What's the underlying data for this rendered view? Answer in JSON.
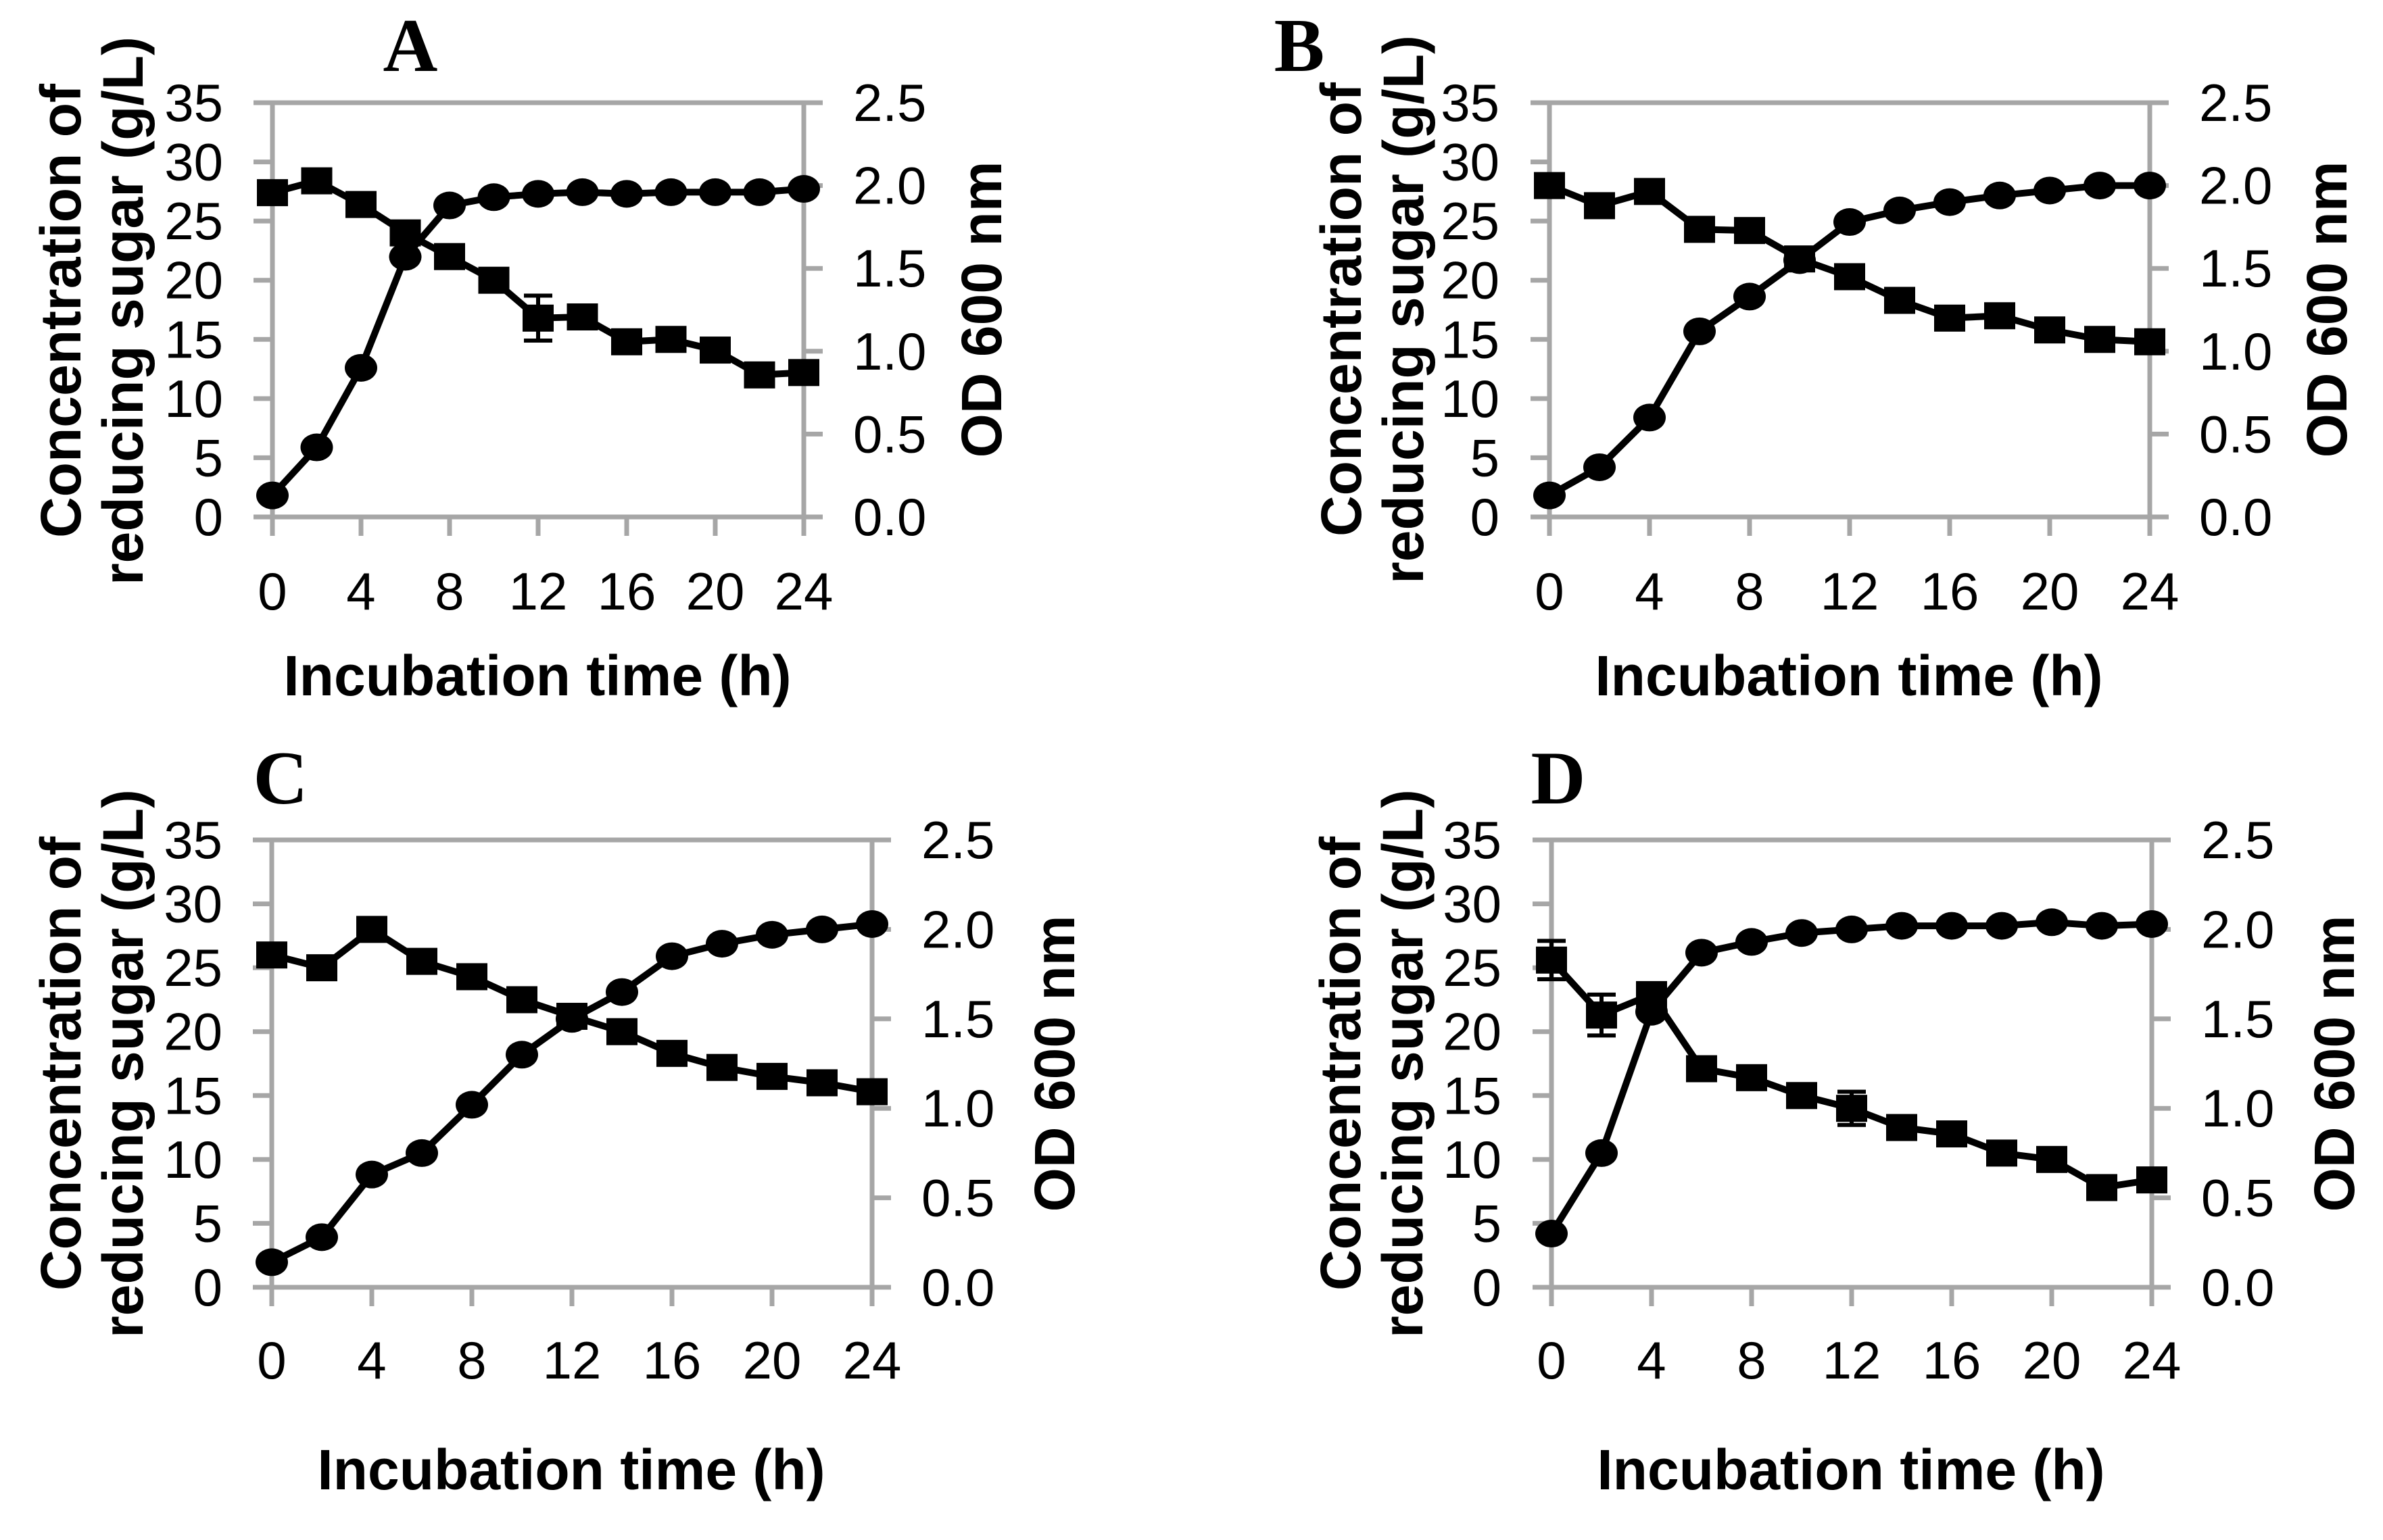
{
  "figure": {
    "background": "#ffffff",
    "axis_color": "#a6a6a6",
    "data_color": "#000000",
    "text_color": "#000000"
  },
  "chart_data": [
    {
      "type": "line",
      "panel_label": "A",
      "xlabel": "Incubation time (h)",
      "ylabel_left_line1": "Concentration of",
      "ylabel_left_line2": "reducing sugar (g/L)",
      "ylabel_right": "OD 600 nm",
      "xlim": [
        0,
        24
      ],
      "ylim_left": [
        0,
        35
      ],
      "ylim_right": [
        0,
        2.5
      ],
      "xticks": [
        0,
        4,
        8,
        12,
        16,
        20,
        24
      ],
      "yticks_left": [
        "0",
        "5",
        "10",
        "15",
        "20",
        "25",
        "30",
        "35"
      ],
      "yticks_right": [
        "0.0",
        "0.5",
        "1.0",
        "1.5",
        "2.0",
        "2.5"
      ],
      "grid": false,
      "legend": "none",
      "x": [
        0,
        2,
        4,
        6,
        8,
        10,
        12,
        14,
        16,
        18,
        20,
        22,
        24
      ],
      "series": [
        {
          "name": "reducing sugar",
          "axis": "left",
          "marker": "square",
          "values": [
            27.4,
            28.4,
            26.4,
            24.0,
            22.0,
            20.0,
            16.8,
            16.9,
            14.8,
            15.0,
            14.1,
            12.0,
            12.2
          ],
          "errors": [
            0,
            0,
            0,
            0,
            0,
            0,
            1.9,
            0,
            0,
            0,
            0,
            0,
            0
          ]
        },
        {
          "name": "OD 600 nm",
          "axis": "right",
          "marker": "circle",
          "values": [
            0.13,
            0.42,
            0.9,
            1.57,
            1.88,
            1.93,
            1.95,
            1.96,
            1.95,
            1.96,
            1.96,
            1.96,
            1.98
          ],
          "errors": [
            0,
            0,
            0,
            0,
            0,
            0,
            0,
            0,
            0,
            0,
            0,
            0,
            0
          ]
        }
      ]
    },
    {
      "type": "line",
      "panel_label": "B",
      "xlabel": "Incubation time (h)",
      "ylabel_left_line1": "Concentration of",
      "ylabel_left_line2": "reducing sugar (g/L)",
      "ylabel_right": "OD 600 nm",
      "xlim": [
        0,
        24
      ],
      "ylim_left": [
        0,
        35
      ],
      "ylim_right": [
        0,
        2.5
      ],
      "xticks": [
        0,
        4,
        8,
        12,
        16,
        20,
        24
      ],
      "yticks_left": [
        "0",
        "5",
        "10",
        "15",
        "20",
        "25",
        "30",
        "35"
      ],
      "yticks_right": [
        "0.0",
        "0.5",
        "1.0",
        "1.5",
        "2.0",
        "2.5"
      ],
      "grid": false,
      "legend": "none",
      "x": [
        0,
        2,
        4,
        6,
        8,
        10,
        12,
        14,
        16,
        18,
        20,
        22,
        24
      ],
      "series": [
        {
          "name": "reducing sugar",
          "axis": "left",
          "marker": "square",
          "values": [
            28.0,
            26.3,
            27.5,
            24.3,
            24.2,
            21.8,
            20.3,
            18.3,
            16.8,
            17.0,
            15.8,
            15.0,
            14.8
          ],
          "errors": [
            0,
            0,
            0,
            0,
            0,
            0,
            0,
            0,
            0,
            0,
            0,
            0,
            0
          ]
        },
        {
          "name": "OD 600 nm",
          "axis": "right",
          "marker": "circle",
          "values": [
            0.13,
            0.3,
            0.6,
            1.12,
            1.33,
            1.55,
            1.78,
            1.85,
            1.9,
            1.94,
            1.97,
            2.0,
            2.0
          ],
          "errors": [
            0,
            0,
            0,
            0,
            0,
            0,
            0,
            0,
            0,
            0,
            0,
            0,
            0
          ]
        }
      ]
    },
    {
      "type": "line",
      "panel_label": "C",
      "xlabel": "Incubation time (h)",
      "ylabel_left_line1": "Concentration of",
      "ylabel_left_line2": "reducing sugar (g/L)",
      "ylabel_right": "OD 600 nm",
      "xlim": [
        0,
        24
      ],
      "ylim_left": [
        0,
        35
      ],
      "ylim_right": [
        0,
        2.5
      ],
      "xticks": [
        0,
        4,
        8,
        12,
        16,
        20,
        24
      ],
      "yticks_left": [
        "0",
        "5",
        "10",
        "15",
        "20",
        "25",
        "30",
        "35"
      ],
      "yticks_right": [
        "0.0",
        "0.5",
        "1.0",
        "1.5",
        "2.0",
        "2.5"
      ],
      "grid": false,
      "legend": "none",
      "x": [
        0,
        2,
        4,
        6,
        8,
        10,
        12,
        14,
        16,
        18,
        20,
        22,
        24
      ],
      "series": [
        {
          "name": "reducing sugar",
          "axis": "left",
          "marker": "square",
          "values": [
            26.0,
            25.0,
            28.0,
            25.5,
            24.3,
            22.5,
            21.2,
            20.0,
            18.3,
            17.2,
            16.5,
            16.0,
            15.3
          ],
          "errors": [
            0,
            0,
            0,
            0,
            0,
            0,
            0,
            0,
            0,
            0,
            0,
            0,
            0
          ]
        },
        {
          "name": "OD 600 nm",
          "axis": "right",
          "marker": "circle",
          "values": [
            0.14,
            0.28,
            0.63,
            0.75,
            1.02,
            1.3,
            1.5,
            1.65,
            1.85,
            1.92,
            1.97,
            2.0,
            2.03
          ],
          "errors": [
            0,
            0,
            0,
            0,
            0,
            0,
            0,
            0,
            0,
            0,
            0,
            0,
            0
          ]
        }
      ]
    },
    {
      "type": "line",
      "panel_label": "D",
      "xlabel": "Incubation time (h)",
      "ylabel_left_line1": "Concentration of",
      "ylabel_left_line2": "reducing sugar (g/L)",
      "ylabel_right": "OD 600 nm",
      "xlim": [
        0,
        24
      ],
      "ylim_left": [
        0,
        35
      ],
      "ylim_right": [
        0,
        2.5
      ],
      "xticks": [
        0,
        4,
        8,
        12,
        16,
        20,
        24
      ],
      "yticks_left": [
        "0",
        "5",
        "10",
        "15",
        "20",
        "25",
        "30",
        "35"
      ],
      "yticks_right": [
        "0.0",
        "0.5",
        "1.0",
        "1.5",
        "2.0",
        "2.5"
      ],
      "grid": false,
      "legend": "none",
      "x": [
        0,
        2,
        4,
        6,
        8,
        10,
        12,
        14,
        16,
        18,
        20,
        22,
        24
      ],
      "series": [
        {
          "name": "reducing sugar",
          "axis": "left",
          "marker": "square",
          "values": [
            25.6,
            21.3,
            22.9,
            17.1,
            16.4,
            15.0,
            14.0,
            12.5,
            12.0,
            10.5,
            10.0,
            7.8,
            8.4
          ],
          "errors": [
            1.5,
            1.6,
            0,
            0,
            0,
            0,
            1.3,
            0,
            0,
            0,
            0,
            0,
            0
          ]
        },
        {
          "name": "OD 600 nm",
          "axis": "right",
          "marker": "circle",
          "values": [
            0.3,
            0.75,
            1.54,
            1.87,
            1.93,
            1.98,
            2.0,
            2.02,
            2.02,
            2.02,
            2.04,
            2.02,
            2.03
          ],
          "errors": [
            0,
            0,
            0,
            0,
            0,
            0,
            0,
            0,
            0,
            0,
            0,
            0,
            0
          ]
        }
      ]
    }
  ]
}
